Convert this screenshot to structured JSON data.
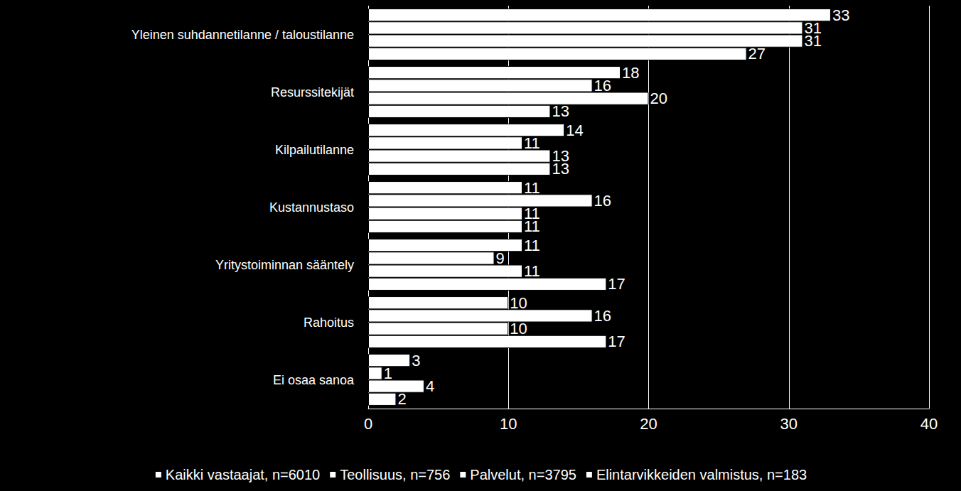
{
  "chart_data": {
    "type": "bar",
    "orientation": "horizontal",
    "categories": [
      "Yleinen suhdannetilanne / taloustilanne",
      "Resurssitekijät",
      "Kilpailutilanne",
      "Kustannustaso",
      "Yritystoiminnan sääntely",
      "Rahoitus",
      "Ei osaa sanoa"
    ],
    "series": [
      {
        "name": "Kaikki vastaajat, n=6010",
        "color": "#ffffff",
        "values": [
          33,
          18,
          14,
          11,
          11,
          10,
          3
        ]
      },
      {
        "name": "Teollisuus, n=756",
        "color": "#ffffff",
        "values": [
          31,
          16,
          11,
          16,
          9,
          16,
          1
        ]
      },
      {
        "name": "Palvelut, n=3795",
        "color": "#ffffff",
        "values": [
          31,
          20,
          13,
          11,
          11,
          10,
          4
        ]
      },
      {
        "name": "Elintarvikkeiden valmistus, n=183",
        "color": "#ffffff",
        "values": [
          27,
          13,
          13,
          11,
          17,
          17,
          2
        ]
      }
    ],
    "xlim": [
      0,
      40
    ],
    "xticks": [
      0,
      10,
      20,
      30,
      40
    ],
    "grid": true,
    "legend": "bottom",
    "data_labels": true
  }
}
